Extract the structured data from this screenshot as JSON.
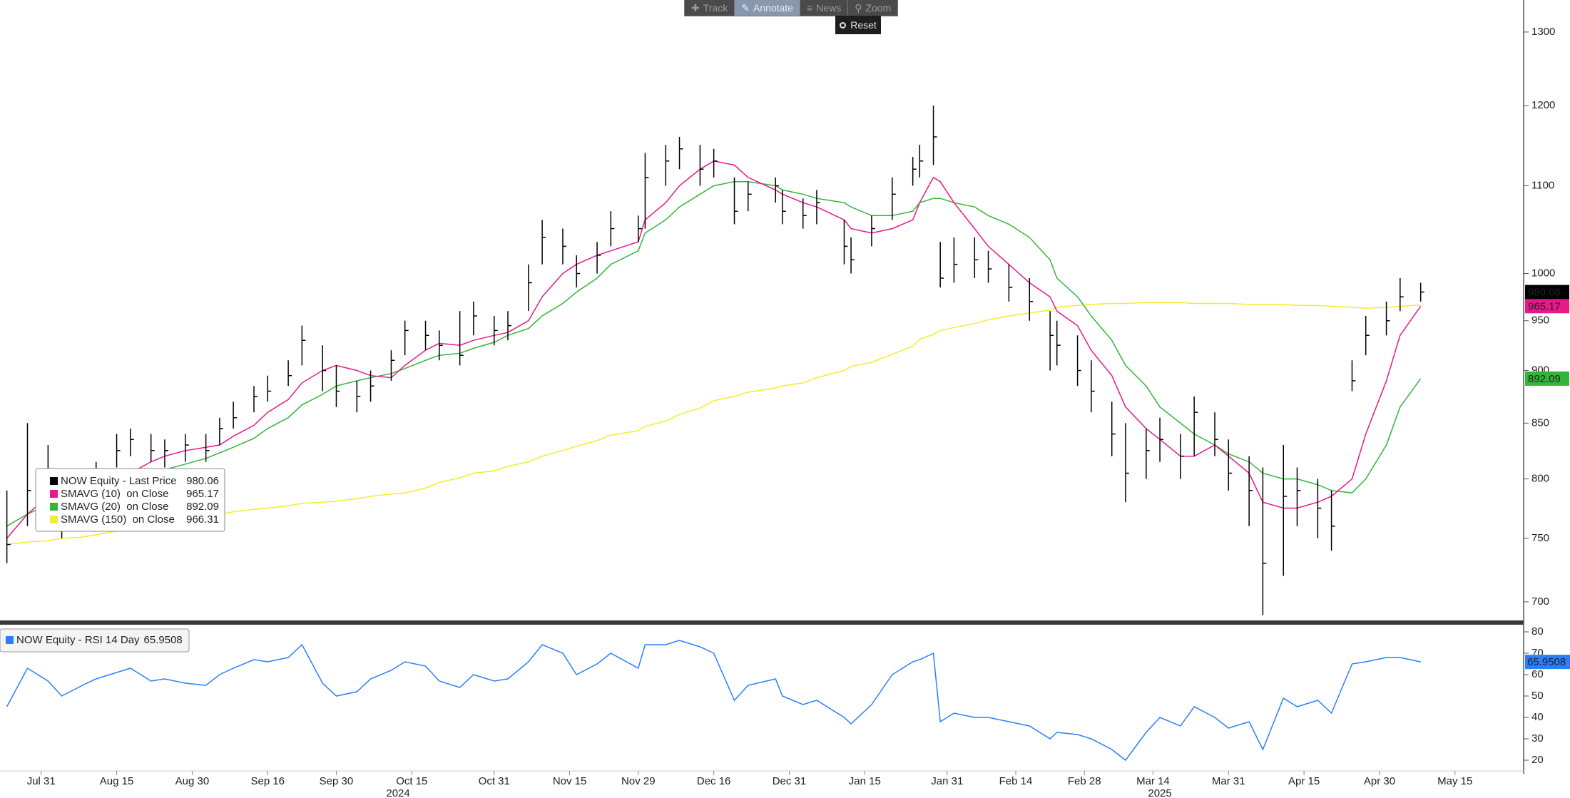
{
  "toolbar": {
    "buttons": [
      "Track",
      "Annotate",
      "News",
      "Zoom"
    ],
    "reset": "Reset"
  },
  "chart_data": {
    "type": "ohlc",
    "log_scale": true,
    "legend": "bottom-left",
    "x": [
      "2024-07-24",
      "2024-07-29",
      "2024-08-01",
      "2024-08-05",
      "2024-08-08",
      "2024-08-12",
      "2024-08-15",
      "2024-08-19",
      "2024-08-22",
      "2024-08-26",
      "2024-08-29",
      "2024-09-03",
      "2024-09-05",
      "2024-09-09",
      "2024-09-12",
      "2024-09-16",
      "2024-09-19",
      "2024-09-23",
      "2024-09-26",
      "2024-09-30",
      "2024-10-03",
      "2024-10-07",
      "2024-10-10",
      "2024-10-14",
      "2024-10-17",
      "2024-10-21",
      "2024-10-24",
      "2024-10-28",
      "2024-10-31",
      "2024-11-04",
      "2024-11-07",
      "2024-11-11",
      "2024-11-14",
      "2024-11-18",
      "2024-11-21",
      "2024-11-25",
      "2024-11-29",
      "2024-12-02",
      "2024-12-05",
      "2024-12-09",
      "2024-12-12",
      "2024-12-16",
      "2024-12-19",
      "2024-12-23",
      "2024-12-27",
      "2024-12-30",
      "2025-01-02",
      "2025-01-06",
      "2025-01-10",
      "2025-01-13",
      "2025-01-16",
      "2025-01-21",
      "2025-01-24",
      "2025-01-27",
      "2025-01-29",
      "2025-01-30",
      "2025-02-03",
      "2025-02-06",
      "2025-02-10",
      "2025-02-13",
      "2025-02-18",
      "2025-02-21",
      "2025-02-24",
      "2025-02-27",
      "2025-03-03",
      "2025-03-06",
      "2025-03-10",
      "2025-03-13",
      "2025-03-17",
      "2025-03-20",
      "2025-03-24",
      "2025-03-27",
      "2025-03-31",
      "2025-04-03",
      "2025-04-07",
      "2025-04-10",
      "2025-04-14",
      "2025-04-17",
      "2025-04-21",
      "2025-04-24",
      "2025-04-28",
      "2025-05-01",
      "2025-05-05",
      "2025-05-08"
    ],
    "xlim": [
      "2024-07-23",
      "2025-05-29"
    ],
    "xticks": [
      {
        "value": "2024-07-31",
        "label": "Jul 31"
      },
      {
        "value": "2024-08-15",
        "label": "Aug 15"
      },
      {
        "value": "2024-08-30",
        "label": "Aug 30"
      },
      {
        "value": "2024-09-16",
        "label": "Sep 16"
      },
      {
        "value": "2024-09-30",
        "label": "Sep 30"
      },
      {
        "value": "2024-10-15",
        "label": "Oct 15"
      },
      {
        "value": "2024-10-31",
        "label": "Oct 31"
      },
      {
        "value": "2024-11-15",
        "label": "Nov 15"
      },
      {
        "value": "2024-11-29",
        "label": "Nov 29"
      },
      {
        "value": "2024-12-16",
        "label": "Dec 16"
      },
      {
        "value": "2024-12-31",
        "label": "Dec 31"
      },
      {
        "value": "2025-01-15",
        "label": "Jan 15"
      },
      {
        "value": "2025-01-31",
        "label": "Jan 31"
      },
      {
        "value": "2025-02-14",
        "label": "Feb 14"
      },
      {
        "value": "2025-02-28",
        "label": "Feb 28"
      },
      {
        "value": "2025-03-14",
        "label": "Mar 14"
      },
      {
        "value": "2025-03-31",
        "label": "Mar 31"
      },
      {
        "value": "2025-04-15",
        "label": "Apr 15"
      },
      {
        "value": "2025-04-30",
        "label": "Apr 30"
      },
      {
        "value": "2025-05-15",
        "label": "May 15"
      }
    ],
    "year_labels": [
      {
        "value": "2024-10-11",
        "label": "2024"
      },
      {
        "value": "2025-03-17",
        "label": "2025"
      }
    ],
    "ylim": [
      686,
      1346
    ],
    "yticks": [
      700,
      750,
      800,
      850,
      900,
      950,
      1000,
      1100,
      1200,
      1300
    ],
    "series": [
      {
        "name": "NOW Equity - Last Price",
        "color": "#000000",
        "high": [
          790,
          850,
          830,
          800,
          805,
          815,
          840,
          845,
          840,
          835,
          840,
          840,
          855,
          870,
          885,
          895,
          910,
          945,
          925,
          905,
          890,
          900,
          920,
          950,
          950,
          940,
          960,
          970,
          955,
          960,
          1010,
          1060,
          1050,
          1020,
          1035,
          1070,
          1065,
          1140,
          1150,
          1160,
          1150,
          1145,
          1110,
          1105,
          1110,
          1095,
          1085,
          1095,
          1060,
          1040,
          1065,
          1110,
          1135,
          1150,
          1200,
          1035,
          1040,
          1040,
          1025,
          1010,
          995,
          960,
          950,
          935,
          910,
          870,
          850,
          845,
          855,
          840,
          875,
          860,
          835,
          820,
          810,
          830,
          810,
          800,
          790,
          910,
          955,
          970,
          995,
          990
        ],
        "low": [
          730,
          760,
          780,
          750,
          775,
          790,
          810,
          820,
          815,
          810,
          815,
          815,
          830,
          845,
          860,
          870,
          885,
          905,
          880,
          865,
          860,
          870,
          890,
          915,
          920,
          910,
          905,
          935,
          925,
          930,
          960,
          1010,
          1010,
          985,
          1000,
          1030,
          1035,
          1050,
          1100,
          1120,
          1100,
          1110,
          1055,
          1070,
          1080,
          1055,
          1050,
          1055,
          1010,
          1000,
          1030,
          1060,
          1100,
          1110,
          1125,
          985,
          990,
          995,
          990,
          970,
          950,
          900,
          905,
          885,
          860,
          820,
          780,
          800,
          815,
          800,
          820,
          820,
          790,
          760,
          690,
          720,
          760,
          750,
          740,
          880,
          915,
          935,
          960,
          970
        ],
        "close": [
          745,
          790,
          800,
          765,
          790,
          800,
          825,
          835,
          825,
          825,
          830,
          825,
          845,
          855,
          875,
          880,
          895,
          930,
          900,
          880,
          875,
          885,
          910,
          940,
          935,
          925,
          915,
          955,
          940,
          945,
          990,
          1040,
          1030,
          1000,
          1020,
          1050,
          1050,
          1110,
          1130,
          1145,
          1120,
          1130,
          1070,
          1090,
          1100,
          1070,
          1065,
          1080,
          1030,
          1015,
          1050,
          1090,
          1120,
          1130,
          1160,
          995,
          1010,
          1015,
          1005,
          985,
          970,
          935,
          925,
          900,
          880,
          840,
          805,
          825,
          835,
          820,
          860,
          835,
          805,
          790,
          730,
          785,
          790,
          775,
          760,
          890,
          935,
          950,
          975,
          980.06
        ]
      },
      {
        "name": "SMAVG (10)  on Close",
        "color": "#e8198b",
        "values": [
          750,
          770,
          785,
          790,
          790,
          795,
          800,
          805,
          815,
          820,
          825,
          828,
          830,
          838,
          848,
          860,
          872,
          888,
          900,
          905,
          900,
          895,
          893,
          905,
          920,
          927,
          925,
          930,
          935,
          938,
          950,
          975,
          1000,
          1010,
          1020,
          1025,
          1035,
          1060,
          1080,
          1100,
          1120,
          1130,
          1125,
          1110,
          1095,
          1090,
          1080,
          1075,
          1060,
          1050,
          1045,
          1050,
          1060,
          1080,
          1110,
          1105,
          1080,
          1050,
          1030,
          1010,
          990,
          975,
          960,
          945,
          920,
          895,
          865,
          845,
          835,
          820,
          820,
          830,
          820,
          805,
          780,
          775,
          775,
          780,
          785,
          800,
          840,
          890,
          935,
          965.17
        ]
      },
      {
        "name": "SMAVG (20)  on Close",
        "color": "#33b53a",
        "values": [
          760,
          770,
          778,
          782,
          785,
          788,
          792,
          798,
          803,
          808,
          813,
          818,
          823,
          828,
          836,
          845,
          855,
          867,
          877,
          885,
          890,
          893,
          897,
          902,
          910,
          915,
          917,
          922,
          928,
          935,
          942,
          955,
          968,
          980,
          995,
          1010,
          1025,
          1045,
          1060,
          1075,
          1090,
          1100,
          1105,
          1105,
          1100,
          1095,
          1090,
          1085,
          1080,
          1075,
          1065,
          1065,
          1070,
          1080,
          1085,
          1085,
          1080,
          1075,
          1065,
          1055,
          1040,
          1015,
          995,
          975,
          955,
          930,
          905,
          885,
          865,
          850,
          840,
          830,
          822,
          815,
          805,
          800,
          800,
          795,
          790,
          788,
          800,
          830,
          865,
          892.09
        ]
      },
      {
        "name": "SMAVG (150)  on Close",
        "color": "#f4ec2e",
        "values": [
          745,
          747,
          748,
          750,
          751,
          753,
          756,
          758,
          760,
          763,
          766,
          768,
          770,
          772,
          774,
          775,
          777,
          779,
          780,
          781,
          783,
          785,
          787,
          788,
          792,
          797,
          801,
          805,
          807,
          811,
          815,
          820,
          825,
          829,
          834,
          839,
          843,
          847,
          852,
          858,
          864,
          871,
          875,
          879,
          883,
          885,
          888,
          893,
          900,
          904,
          908,
          916,
          924,
          931,
          936,
          940,
          943,
          947,
          951,
          955,
          958,
          961,
          964,
          966,
          967,
          968,
          968,
          969,
          969,
          969,
          968,
          968,
          968,
          967,
          967,
          967,
          966,
          966,
          965,
          964,
          963,
          964,
          965,
          966.31
        ]
      }
    ],
    "lower_panel": {
      "ylim": [
        15,
        83
      ],
      "yticks": [
        20,
        30,
        40,
        50,
        60,
        70,
        80
      ],
      "series": [
        {
          "name": "NOW Equity - RSI 14 Day",
          "color": "#2a7fff",
          "values": [
            45,
            63,
            57,
            50,
            55,
            58,
            61,
            63,
            57,
            58,
            56,
            55,
            60,
            63,
            67,
            66,
            68,
            74,
            56,
            50,
            52,
            58,
            62,
            66,
            64,
            57,
            54,
            60,
            57,
            58,
            66,
            74,
            70,
            60,
            65,
            70,
            63,
            74,
            74,
            76,
            73,
            70,
            48,
            55,
            58,
            50,
            46,
            48,
            40,
            37,
            46,
            60,
            66,
            67,
            70,
            38,
            42,
            40,
            40,
            38,
            36,
            30,
            33,
            32,
            30,
            25,
            20,
            33,
            40,
            36,
            45,
            40,
            35,
            38,
            25,
            49,
            45,
            48,
            42,
            65,
            66,
            68,
            68,
            65.9508
          ]
        }
      ]
    }
  }
}
